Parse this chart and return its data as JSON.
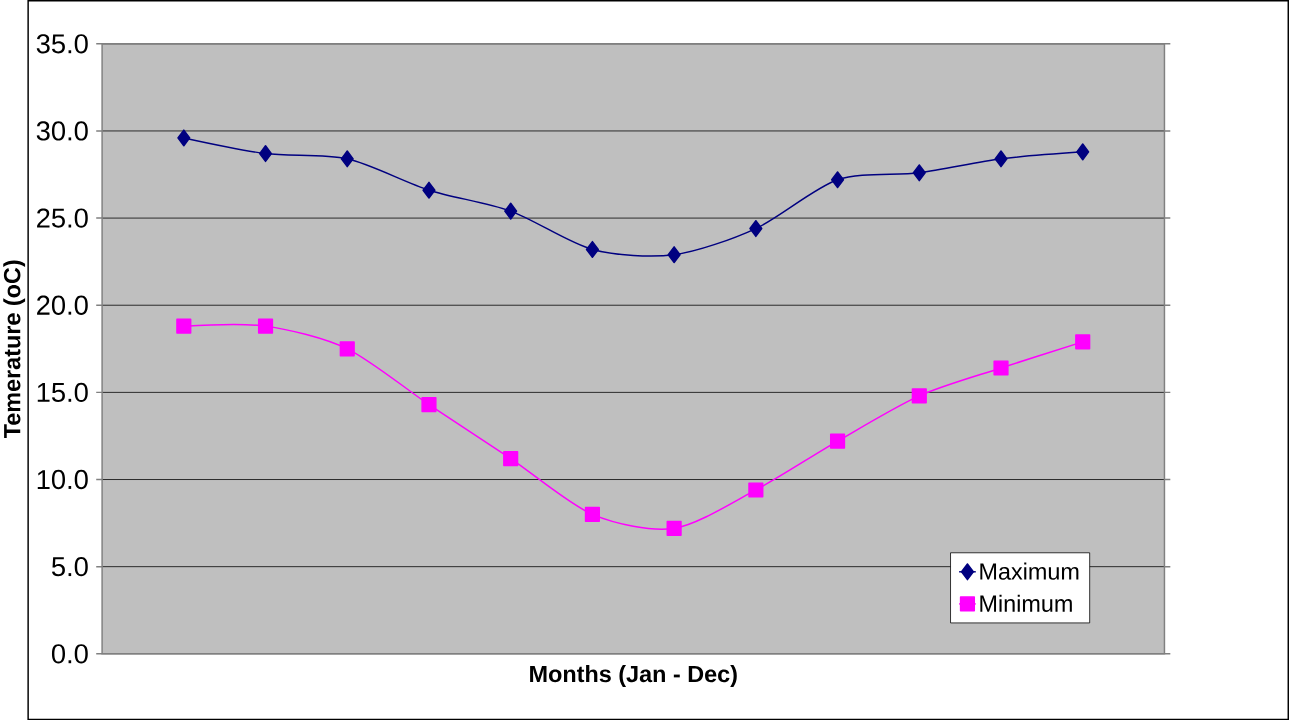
{
  "chart_data": {
    "type": "line",
    "xlabel": "Months (Jan - Dec)",
    "ylabel": "Temerature (oC)",
    "categories": [
      null,
      null,
      null,
      null,
      null,
      null,
      null,
      null,
      null,
      null,
      null,
      null
    ],
    "series": [
      {
        "name": "Maximum",
        "color": "#000080",
        "marker": "diamond",
        "values": [
          29.6,
          28.7,
          28.4,
          26.6,
          25.4,
          23.2,
          22.9,
          24.4,
          27.2,
          27.6,
          28.4,
          28.8
        ]
      },
      {
        "name": "Minimum",
        "color": "#ff00ff",
        "marker": "square",
        "values": [
          18.8,
          18.8,
          17.5,
          14.3,
          11.2,
          8.0,
          7.2,
          9.4,
          12.2,
          14.8,
          16.4,
          17.9
        ]
      }
    ],
    "ylim": [
      0,
      35
    ],
    "yticks": [
      {
        "value": 0,
        "label": "0.0"
      },
      {
        "value": 5,
        "label": "5.0"
      },
      {
        "value": 10,
        "label": "10.0"
      },
      {
        "value": 15,
        "label": "15.0"
      },
      {
        "value": 20,
        "label": "20.0"
      },
      {
        "value": 25,
        "label": "25.0"
      },
      {
        "value": 30,
        "label": "30.0"
      },
      {
        "value": 35,
        "label": "35.0"
      }
    ],
    "grid": "y",
    "legend": "bottom right",
    "tick_labels": "y",
    "line_style": "solid"
  }
}
